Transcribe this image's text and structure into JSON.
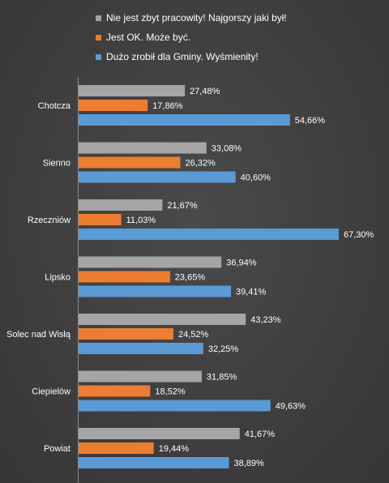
{
  "chart_data": {
    "type": "bar",
    "orientation": "horizontal",
    "categories": [
      "Chotcza",
      "Sienno",
      "Rzeczniów",
      "Lipsko",
      "Solec nad Wisłą",
      "Ciepielów",
      "Powiat"
    ],
    "series": [
      {
        "name": "Nie jest zbyt pracowity! Najgorszy jaki był!",
        "color": "#a5a5a5",
        "values": [
          27.48,
          33.08,
          21.67,
          36.94,
          43.23,
          31.85,
          41.67
        ],
        "labels": [
          "27,48%",
          "33,08%",
          "21,67%",
          "36,94%",
          "43,23%",
          "31,85%",
          "41,67%"
        ]
      },
      {
        "name": "Jest OK. Może być.",
        "color": "#ed7d31",
        "values": [
          17.86,
          26.32,
          11.03,
          23.65,
          24.52,
          18.52,
          19.44
        ],
        "labels": [
          "17,86%",
          "26,32%",
          "11,03%",
          "23,65%",
          "24,52%",
          "18,52%",
          "19,44%"
        ]
      },
      {
        "name": "Dużo zrobił dla Gminy. Wyśmienity!",
        "color": "#5b9bd5",
        "values": [
          54.66,
          40.6,
          67.3,
          39.41,
          32.25,
          49.63,
          38.89
        ],
        "labels": [
          "54,66%",
          "40,60%",
          "67,30%",
          "39,41%",
          "32,25%",
          "49,63%",
          "38,89%"
        ]
      }
    ],
    "xlim": [
      0,
      80
    ],
    "grid": false,
    "legend_position": "top"
  }
}
